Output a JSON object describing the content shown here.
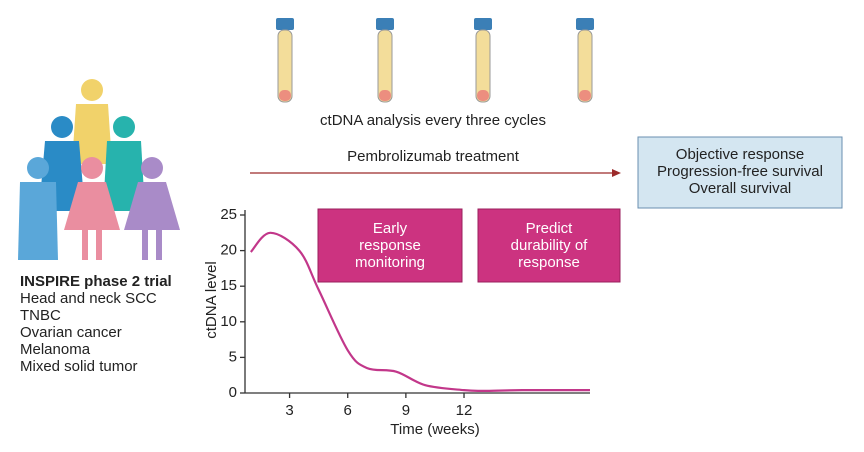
{
  "analysis_label": "ctDNA analysis every three cycles",
  "treatment_label": "Pembrolizumab treatment",
  "outcomes": [
    "Objective response",
    "Progression-free survival",
    "Overall survival"
  ],
  "trial": {
    "title": "INSPIRE phase 2 trial",
    "cohorts": [
      "Head and neck SCC",
      "TNBC",
      "Ovarian cancer",
      "Melanoma",
      "Mixed solid tumor"
    ]
  },
  "phases": [
    {
      "lines": [
        "Early",
        "response",
        "monitoring"
      ]
    },
    {
      "lines": [
        "Predict",
        "durability of",
        "response"
      ]
    }
  ],
  "chart_data": {
    "type": "line",
    "x_label": "Time (weeks)",
    "y_label": "ctDNA level",
    "x": [
      1,
      2,
      3.5,
      4.5,
      6,
      7,
      8.5,
      10,
      12,
      13,
      15,
      18.5
    ],
    "series": [
      {
        "color": "#c2378a",
        "values": [
          19.8,
          22.5,
          20,
          14.5,
          6,
          3.5,
          3,
          1.1,
          0.4,
          0.3,
          0.4,
          0.4
        ]
      }
    ],
    "xlim": [
      0.7,
      18.5
    ],
    "ylim": [
      0,
      25
    ],
    "xticks": [
      3,
      6,
      9,
      12
    ],
    "yticks": [
      0,
      5,
      10,
      15,
      20,
      25
    ]
  }
}
